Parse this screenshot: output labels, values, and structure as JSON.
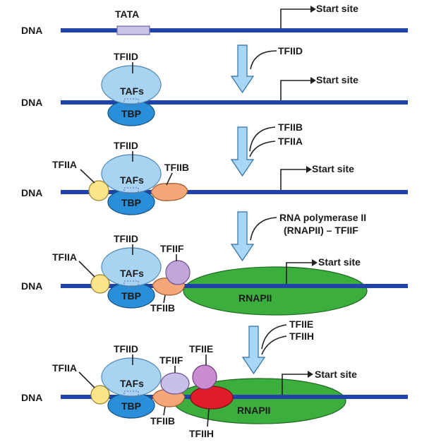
{
  "labels": {
    "dna": "DNA",
    "tata": "TATA",
    "start_site": "Start site",
    "tfiid": "TFIID",
    "tafs": "TAFs",
    "tbp": "TBP",
    "tfiia": "TFIIA",
    "tfiib": "TFIIB",
    "tfiif": "TFIIF",
    "tfiie": "TFIIE",
    "tfiih": "TFIIH",
    "rnapii": "RNAPII"
  },
  "steps": [
    {
      "labels": [
        "TFIID"
      ]
    },
    {
      "labels": [
        "TFIIB",
        "TFIIA"
      ]
    },
    {
      "labels": [
        "RNA polymerase II",
        "(RNAPII) – TFIIF"
      ]
    },
    {
      "labels": [
        "TFIIE",
        "TFIIH"
      ]
    }
  ],
  "colors": {
    "dna": "#1f43a8",
    "tafs": "#a8d4f2",
    "tbp": "#2a8fd8",
    "tfiia": "#fbe58a",
    "tfiib": "#f6a77a",
    "tfiif": "#bfa5d8",
    "tfiie": "#c98ccf",
    "tfiih": "#e01c2a",
    "rnapii": "#3cae3e",
    "arrow": "#a9d6f5",
    "tata": "#c8c4e6"
  }
}
